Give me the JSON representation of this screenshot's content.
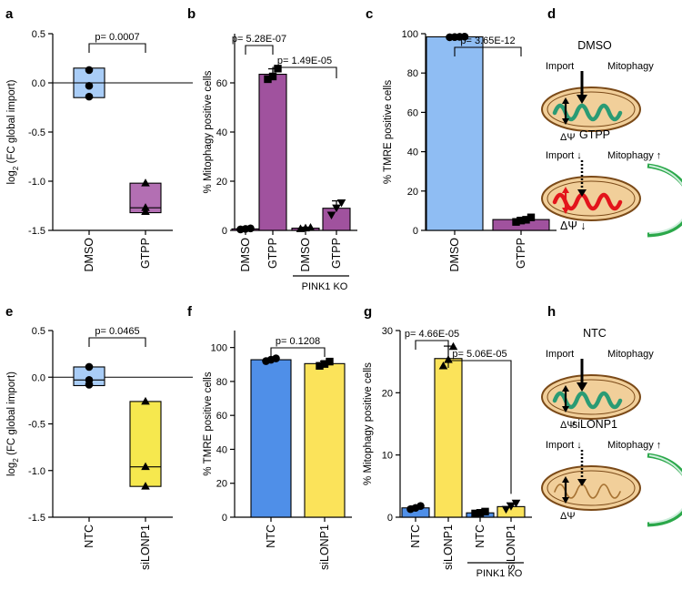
{
  "chart_data": [
    {
      "panel": "a",
      "type": "box",
      "ylabel": "log2 (FC global import)",
      "ylim": [
        -1.5,
        0.5
      ],
      "yticks": [
        "-1.5",
        "-1.0",
        "-0.5",
        "0.0",
        "0.5"
      ],
      "categories": [
        "DMSO",
        "GTPP"
      ],
      "groups": [
        {
          "name": "DMSO",
          "q1": -0.15,
          "median": 0.0,
          "q3": 0.15,
          "points": [
            0.13,
            -0.03,
            -0.14
          ],
          "color": "#a9cdf7"
        },
        {
          "name": "GTPP",
          "q1": -1.32,
          "median": -1.27,
          "q3": -1.02,
          "points": [
            -1.02,
            -1.27,
            -1.31
          ],
          "color": "#b36fb3"
        }
      ],
      "zero_line": 0,
      "brackets": [
        {
          "from": 0,
          "to": 1,
          "label": "p= 0.0007"
        }
      ]
    },
    {
      "panel": "b",
      "type": "bar",
      "ylabel": "% Mitophagy positive cells",
      "ylim": [
        0,
        80
      ],
      "yticks": [
        "0",
        "20",
        "40",
        "60"
      ],
      "categories": [
        "DMSO",
        "GTPP",
        "DMSO",
        "GTPP"
      ],
      "group_label": "PINK1 KO",
      "values": [
        0.6,
        63.5,
        0.9,
        9.0
      ],
      "errors": [
        0.3,
        2.2,
        0.4,
        3.0
      ],
      "points": [
        [
          0.4,
          0.6,
          0.8
        ],
        [
          61.5,
          62.6,
          65.8
        ],
        [
          0.6,
          0.9,
          1.1
        ],
        [
          6.3,
          9.2,
          11.3
        ]
      ],
      "markers": [
        "circle",
        "square",
        "triangle-up",
        "triangle-down"
      ],
      "colors": [
        "#a0529e",
        "#a0529e",
        "#a0529e",
        "#a0529e"
      ],
      "brackets": [
        {
          "from": 0,
          "to": 1,
          "label": "p= 5.28E-07"
        },
        {
          "from": 1,
          "to": 3,
          "label": "p= 1.49E-05"
        }
      ]
    },
    {
      "panel": "c",
      "type": "bar",
      "ylabel": "% TMRE positive cells",
      "ylim": [
        0,
        100
      ],
      "yticks": [
        "0",
        "20",
        "40",
        "60",
        "80",
        "100"
      ],
      "categories": [
        "DMSO",
        "GTPP"
      ],
      "values": [
        98.4,
        5.5
      ],
      "errors": [
        0.2,
        1.0
      ],
      "points": [
        [
          98.2,
          98.3,
          98.4,
          98.5
        ],
        [
          4.3,
          5.0,
          5.4,
          6.6
        ]
      ],
      "markers": [
        "circle",
        "square"
      ],
      "colors": [
        "#8fbdf3",
        "#a0529e"
      ],
      "brackets": [
        {
          "from": 0,
          "to": 1,
          "label": "p= 3.65E-12"
        }
      ]
    },
    {
      "panel": "e",
      "type": "box",
      "ylabel": "log2 (FC global import)",
      "ylim": [
        -1.5,
        0.5
      ],
      "yticks": [
        "-1.5",
        "-1.0",
        "-0.5",
        "0.0",
        "0.5"
      ],
      "categories": [
        "NTC",
        "siLONP1"
      ],
      "groups": [
        {
          "name": "NTC",
          "q1": -0.09,
          "median": -0.03,
          "q3": 0.11,
          "points": [
            0.11,
            -0.03,
            -0.08
          ],
          "color": "#a9cdf7"
        },
        {
          "name": "siLONP1",
          "q1": -1.17,
          "median": -0.96,
          "q3": -0.26,
          "points": [
            -0.26,
            -0.96,
            -1.17
          ],
          "color": "#f6e84e"
        }
      ],
      "zero_line": 0,
      "brackets": [
        {
          "from": 0,
          "to": 1,
          "label": "p= 0.0465"
        }
      ]
    },
    {
      "panel": "f",
      "type": "bar",
      "ylabel": "% TMRE positive cells",
      "ylim": [
        0,
        110
      ],
      "yticks": [
        "0",
        "20",
        "40",
        "60",
        "80",
        "100"
      ],
      "categories": [
        "NTC",
        "siLONP1"
      ],
      "values": [
        92.8,
        90.5
      ],
      "errors": [
        1.0,
        1.5
      ],
      "points": [
        [
          92.0,
          92.8,
          93.6
        ],
        [
          89.2,
          90.3,
          91.7
        ]
      ],
      "markers": [
        "circle",
        "square"
      ],
      "colors": [
        "#4f8fe8",
        "#fbe35a"
      ],
      "brackets": [
        {
          "from": 0,
          "to": 1,
          "label": "p= 0.1208"
        }
      ]
    },
    {
      "panel": "g",
      "type": "bar",
      "ylabel": "% Mitophagy positive cells",
      "ylim": [
        0,
        30
      ],
      "yticks": [
        "0",
        "10",
        "20",
        "30"
      ],
      "categories": [
        "NTC",
        "siLONP1",
        "NTC",
        "siLONP1"
      ],
      "group_label": "PINK1 KO",
      "values": [
        1.5,
        25.5,
        0.7,
        1.7
      ],
      "errors": [
        0.3,
        2.0,
        0.3,
        0.6
      ],
      "points": [
        [
          1.3,
          1.5,
          1.8
        ],
        [
          24.3,
          25.3,
          27.4
        ],
        [
          0.6,
          0.7,
          0.9
        ],
        [
          1.3,
          1.8,
          2.3
        ]
      ],
      "markers": [
        "circle",
        "triangle-up",
        "square",
        "triangle-down"
      ],
      "colors": [
        "#4f8fe8",
        "#fbe35a",
        "#4f8fe8",
        "#fbe35a"
      ],
      "brackets": [
        {
          "from": 0,
          "to": 1,
          "label": "p= 4.66E-05"
        },
        {
          "from": 1,
          "to": 3,
          "label": "p= 5.06E-05"
        }
      ]
    }
  ],
  "panel_letters": [
    "a",
    "b",
    "c",
    "d",
    "e",
    "f",
    "g",
    "h"
  ],
  "diagrams": {
    "d": [
      {
        "title": "DMSO",
        "import": "Import",
        "mitophagy": "Mitophagy",
        "psi": "ΔΨ",
        "state": "healthy"
      },
      {
        "title": "GTPP",
        "import": "Import",
        "mitophagy": "Mitophagy",
        "psi": "ΔΨ",
        "state": "depolarized"
      }
    ],
    "h": [
      {
        "title": "NTC",
        "import": "Import",
        "mitophagy": "Mitophagy",
        "psi": "ΔΨ",
        "state": "healthy"
      },
      {
        "title": "siLONP1",
        "import": "Import",
        "mitophagy": "Mitophagy",
        "psi": "ΔΨ",
        "state": "lonp1"
      }
    ]
  },
  "colors": {
    "mito_fill": "#f1cf9a",
    "mito_outline": "#7b4a18",
    "cristae_green": "#2a9b74",
    "cristae_red": "#e3141b",
    "cristae_brown": "#a67232",
    "phagophore": "#2ba84a",
    "warn_red": "#e3141b",
    "up_green": "#17873a"
  }
}
